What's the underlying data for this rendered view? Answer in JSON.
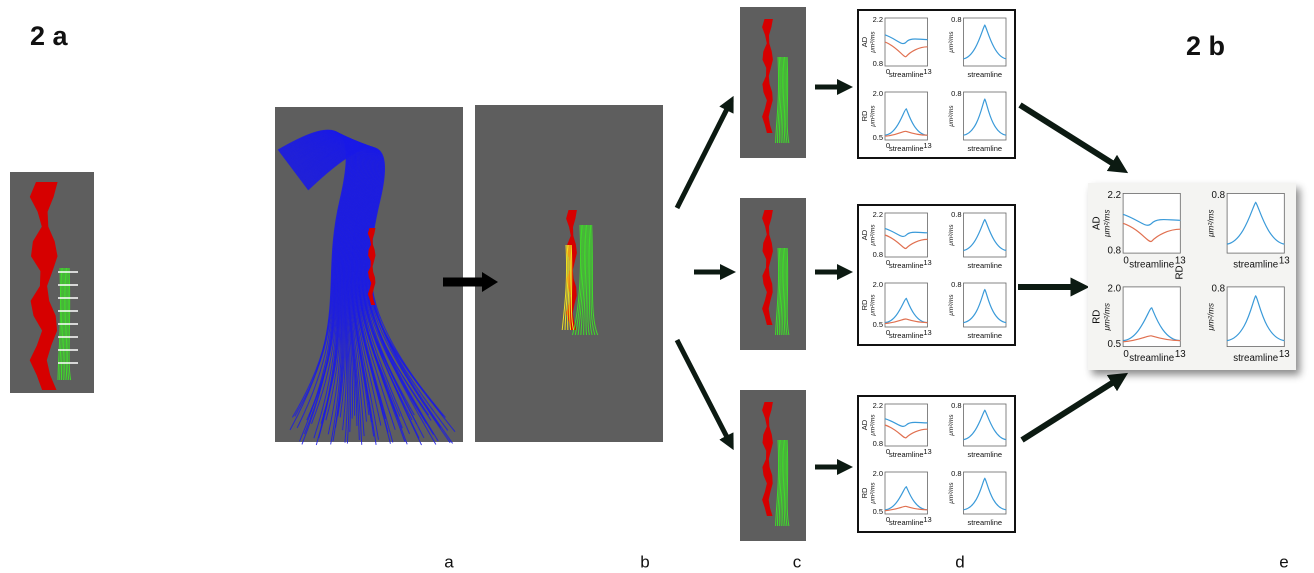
{
  "figure_labels": [
    "2 a",
    "2 b"
  ],
  "panel_labels": [
    "a",
    "b",
    "c",
    "d",
    "e"
  ],
  "plot_grids": [
    {
      "plots": [
        {
          "ylabel": "AD",
          "unit": "μm²/ms",
          "ymax": "2.2",
          "ymin": "0.8",
          "xmin": "0",
          "xmax": "13",
          "xlabel": "streamline"
        },
        {
          "unit": "μm²/ms",
          "ymax": "0.8",
          "xlabel": "streamline"
        },
        {
          "ylabel": "RD",
          "unit": "μm²/ms",
          "ymax": "2.0",
          "ymin": "0.5",
          "xmin": "0",
          "xmax": "13",
          "xlabel": "streamline"
        },
        {
          "unit": "μm²/ms",
          "ymax": "0.8",
          "xlabel": "streamline"
        }
      ]
    },
    {
      "plots": [
        {
          "ylabel": "AD",
          "unit": "μm²/ms",
          "ymax": "2.2",
          "ymin": "0.8",
          "xmin": "0",
          "xmax": "13",
          "xlabel": "streamline"
        },
        {
          "unit": "μm²/ms",
          "ymax": "0.8",
          "xlabel": "streamline"
        },
        {
          "ylabel": "RD",
          "unit": "μm²/ms",
          "ymax": "2.0",
          "ymin": "0.5",
          "xmin": "0",
          "xmax": "13",
          "xlabel": "streamline"
        },
        {
          "unit": "μm²/ms",
          "ymax": "0.8",
          "xlabel": "streamline"
        }
      ]
    },
    {
      "plots": [
        {
          "ylabel": "AD",
          "unit": "μm²/ms",
          "ymax": "2.2",
          "ymin": "0.8",
          "xmin": "0",
          "xmax": "13",
          "xlabel": "streamline"
        },
        {
          "unit": "μm²/ms",
          "ymax": "0.8",
          "xlabel": "streamline"
        },
        {
          "ylabel": "RD",
          "unit": "μm²/ms",
          "ymax": "2.0",
          "ymin": "0.5",
          "xmin": "0",
          "xmax": "13",
          "xlabel": "streamline"
        },
        {
          "unit": "μm²/ms",
          "ymax": "0.8",
          "xlabel": "streamline"
        }
      ]
    },
    {
      "note": "RD",
      "plots": [
        {
          "ylabel": "AD",
          "unit": "μm²/ms",
          "ymax": "2.2",
          "ymin": "0.8",
          "xmin": "0",
          "xmax": "13",
          "xlabel": "streamline"
        },
        {
          "unit": "μm²/ms",
          "ymax": "0.8",
          "xmax": "13",
          "xlabel": "streamline"
        },
        {
          "ylabel": "RD",
          "unit": "μm²/ms",
          "ymax": "2.0",
          "ymin": "0.5",
          "xmin": "0",
          "xmax": "13",
          "xlabel": "streamline"
        },
        {
          "unit": "μm²/ms",
          "ymax": "0.8",
          "xmax": "13",
          "xlabel": "streamline"
        }
      ]
    }
  ]
}
